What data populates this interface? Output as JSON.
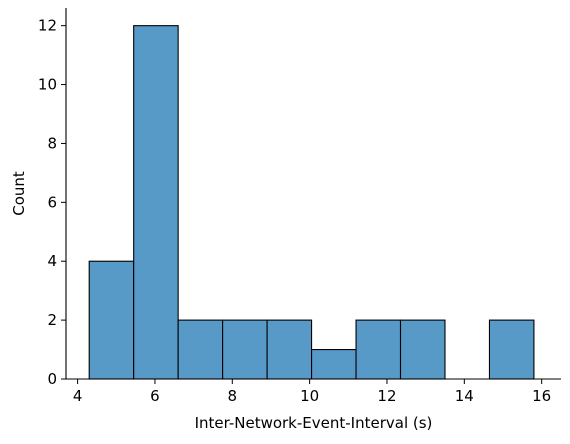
{
  "chart_data": {
    "type": "bar",
    "title": "",
    "xlabel": "Inter-Network-Event-Interval (s)",
    "ylabel": "Count",
    "xlim": [
      3.7,
      16.5
    ],
    "ylim": [
      0,
      12.6
    ],
    "xticks": [
      4,
      6,
      8,
      10,
      12,
      14,
      16
    ],
    "yticks": [
      0,
      2,
      4,
      6,
      8,
      10,
      12
    ],
    "bins": [
      {
        "start": 4.3,
        "end": 5.45,
        "count": 4
      },
      {
        "start": 5.45,
        "end": 6.6,
        "count": 12
      },
      {
        "start": 6.6,
        "end": 7.75,
        "count": 2
      },
      {
        "start": 7.75,
        "end": 8.9,
        "count": 2
      },
      {
        "start": 8.9,
        "end": 10.05,
        "count": 2
      },
      {
        "start": 10.05,
        "end": 11.2,
        "count": 1
      },
      {
        "start": 11.2,
        "end": 12.35,
        "count": 2
      },
      {
        "start": 12.35,
        "end": 13.5,
        "count": 2
      },
      {
        "start": 13.5,
        "end": 14.65,
        "count": 0
      },
      {
        "start": 14.65,
        "end": 15.8,
        "count": 2
      }
    ],
    "bar_color": "#5799c7",
    "edge_color": "#000000",
    "grid": false,
    "legend": "none"
  }
}
